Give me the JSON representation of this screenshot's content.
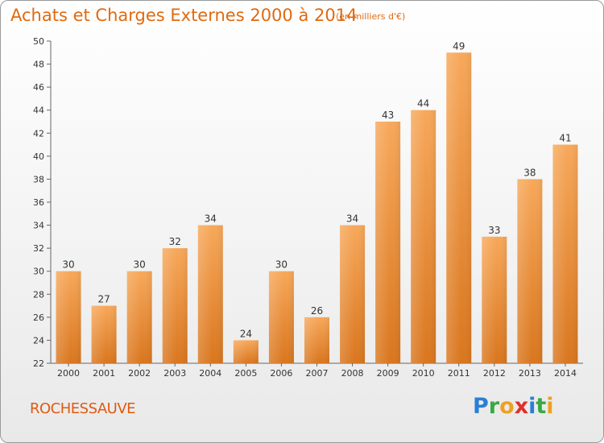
{
  "header": {
    "title": "Achats et Charges Externes 2000 à 2014",
    "subtitle": "(en milliers d'€)"
  },
  "footer": {
    "commune": "ROCHESSAUVE",
    "logo": [
      "P",
      "r",
      "o",
      "x",
      "i",
      "t",
      "i"
    ]
  },
  "colors": {
    "title": "#e06a10",
    "bar_light": "#f7a85a",
    "bar_dark": "#d9761e",
    "axis": "#555555"
  },
  "chart_data": {
    "type": "bar",
    "title": "Achats et Charges Externes 2000 à 2014",
    "subtitle": "(en milliers d'€)",
    "xlabel": "",
    "ylabel": "",
    "categories": [
      "2000",
      "2001",
      "2002",
      "2003",
      "2004",
      "2005",
      "2006",
      "2007",
      "2008",
      "2009",
      "2010",
      "2011",
      "2012",
      "2013",
      "2014"
    ],
    "values": [
      30,
      27,
      30,
      32,
      34,
      24,
      30,
      26,
      34,
      43,
      44,
      49,
      33,
      38,
      41
    ],
    "ylim": [
      22,
      50
    ],
    "yticks": [
      22,
      24,
      26,
      28,
      30,
      32,
      34,
      36,
      38,
      40,
      42,
      44,
      46,
      48,
      50
    ],
    "grid": false
  }
}
